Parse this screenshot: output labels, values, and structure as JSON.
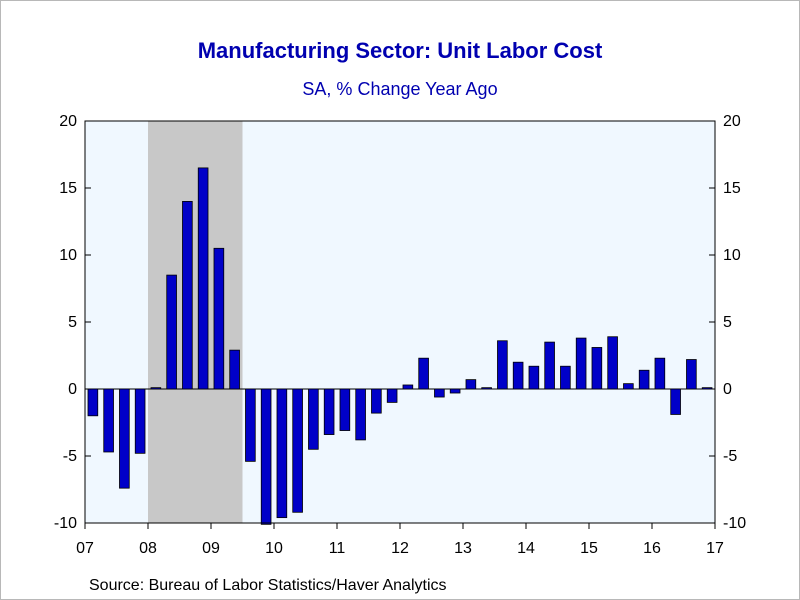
{
  "chart_data": {
    "type": "bar",
    "title": "Manufacturing Sector: Unit Labor Cost",
    "subtitle": "SA, % Change Year Ago",
    "source": "Source:  Bureau of Labor Statistics/Haver Analytics",
    "ylim": [
      -10,
      20
    ],
    "yticks": [
      20,
      15,
      10,
      5,
      0,
      -5,
      -10
    ],
    "ytick_labels": [
      "20",
      "15",
      "10",
      "5",
      "0",
      "-5",
      "-10"
    ],
    "x_tick_labels": [
      "07",
      "08",
      "09",
      "10",
      "11",
      "12",
      "13",
      "14",
      "15",
      "16",
      "17"
    ],
    "x_start_year": 2007,
    "x_end_year": 2017,
    "bar_color": "#0000c8",
    "plot_background": "#f0f8ff",
    "recession_color": "#c8c8c8",
    "recession_period": {
      "start_year": 2008,
      "start_quarter": 1,
      "end_year": 2009,
      "end_quarter": 2
    },
    "quarters": [
      "2007Q1",
      "2007Q2",
      "2007Q3",
      "2007Q4",
      "2008Q1",
      "2008Q2",
      "2008Q3",
      "2008Q4",
      "2009Q1",
      "2009Q2",
      "2009Q3",
      "2009Q4",
      "2010Q1",
      "2010Q2",
      "2010Q3",
      "2010Q4",
      "2011Q1",
      "2011Q2",
      "2011Q3",
      "2011Q4",
      "2012Q1",
      "2012Q2",
      "2012Q3",
      "2012Q4",
      "2013Q1",
      "2013Q2",
      "2013Q3",
      "2013Q4",
      "2014Q1",
      "2014Q2",
      "2014Q3",
      "2014Q4",
      "2015Q1",
      "2015Q2",
      "2015Q3",
      "2015Q4",
      "2016Q1",
      "2016Q2",
      "2016Q3",
      "2016Q4"
    ],
    "values": [
      -2.0,
      -4.7,
      -7.4,
      -4.8,
      0.1,
      8.5,
      14.0,
      16.5,
      10.5,
      2.9,
      -5.4,
      -10.1,
      -9.6,
      -9.2,
      -4.5,
      -3.4,
      -3.1,
      -3.8,
      -1.8,
      -1.0,
      0.3,
      2.3,
      -0.6,
      -0.3,
      0.7,
      0.1,
      3.6,
      2.0,
      1.7,
      3.5,
      1.7,
      3.8,
      3.1,
      3.9,
      0.4,
      1.4,
      2.3,
      -1.9,
      2.2,
      0.1
    ]
  }
}
